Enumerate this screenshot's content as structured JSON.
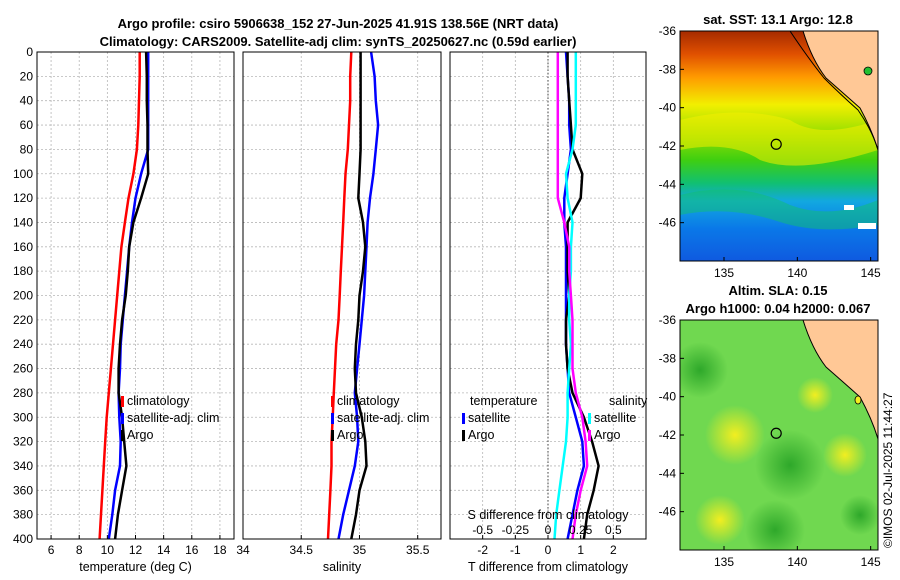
{
  "title": {
    "line1": "Argo profile: csiro 5906638_152 27-Jun-2025 41.91S 138.56E (NRT data)",
    "line2": "Climatology: CARS2009. Satellite-adj clim: synTS_20250627.nc (0.59d earlier)"
  },
  "credit": "©IMOS 02-Jul-2025 11:44:27",
  "colors": {
    "climatology": "#ff0000",
    "satellite": "#0000ff",
    "argo": "#000000",
    "t_sat": "#00ffff",
    "s_diff": "#ff00ff",
    "land": "#ffc896",
    "map_frame": "#000000"
  },
  "chart_data": [
    {
      "id": "temperature",
      "type": "line",
      "xlabel": "temperature (deg C)",
      "ylabel": "depth",
      "xlim": [
        5,
        19
      ],
      "ylim": [
        400,
        0
      ],
      "xticks": [
        "6",
        "8",
        "10",
        "12",
        "14",
        "16",
        "18"
      ],
      "xtick_values": [
        6,
        8,
        10,
        12,
        14,
        16,
        18
      ],
      "yticks": [
        "0",
        "20",
        "40",
        "60",
        "80",
        "100",
        "120",
        "140",
        "160",
        "180",
        "200",
        "220",
        "240",
        "260",
        "280",
        "300",
        "320",
        "340",
        "360",
        "380",
        "400"
      ],
      "ytick_values": [
        0,
        20,
        40,
        60,
        80,
        100,
        120,
        140,
        160,
        180,
        200,
        220,
        240,
        260,
        280,
        300,
        320,
        340,
        360,
        380,
        400
      ],
      "depth": [
        0,
        20,
        40,
        60,
        80,
        100,
        120,
        140,
        160,
        180,
        200,
        220,
        240,
        260,
        280,
        300,
        320,
        340,
        360,
        380,
        400
      ],
      "series": [
        {
          "name": "climatology",
          "color": "#ff0000",
          "values": [
            12.3,
            12.3,
            12.25,
            12.2,
            12.1,
            11.85,
            11.5,
            11.25,
            11.0,
            10.85,
            10.7,
            10.55,
            10.4,
            10.25,
            10.1,
            9.95,
            9.85,
            9.75,
            9.65,
            9.55,
            9.45
          ]
        },
        {
          "name": "satellite-adj. clim",
          "color": "#0000ff",
          "values": [
            12.9,
            12.9,
            12.9,
            12.9,
            12.9,
            12.4,
            12.0,
            11.75,
            11.55,
            11.4,
            11.25,
            11.1,
            10.95,
            10.9,
            10.8,
            10.85,
            10.95,
            10.9,
            10.55,
            10.35,
            10.1
          ]
        },
        {
          "name": "Argo",
          "color": "#000000",
          "values": [
            12.75,
            12.8,
            12.8,
            12.85,
            12.85,
            12.9,
            12.4,
            11.85,
            11.55,
            11.45,
            11.3,
            11.05,
            10.9,
            10.8,
            10.8,
            11.05,
            11.2,
            11.35,
            11.05,
            10.75,
            10.55
          ]
        }
      ],
      "legend": [
        "climatology",
        "satellite-adj. clim",
        "Argo"
      ]
    },
    {
      "id": "salinity",
      "type": "line",
      "xlabel": "salinity",
      "ylabel": "depth",
      "xlim": [
        34,
        35.7
      ],
      "ylim": [
        400,
        0
      ],
      "xticks": [
        "34",
        "34.5",
        "35",
        "35.5"
      ],
      "xtick_values": [
        34,
        34.5,
        35,
        35.5
      ],
      "depth": [
        0,
        20,
        40,
        60,
        80,
        100,
        120,
        140,
        160,
        180,
        200,
        220,
        240,
        260,
        280,
        300,
        320,
        340,
        360,
        380,
        400
      ],
      "series": [
        {
          "name": "climatology",
          "color": "#ff0000",
          "values": [
            34.93,
            34.92,
            34.92,
            34.91,
            34.9,
            34.88,
            34.87,
            34.86,
            34.85,
            34.84,
            34.83,
            34.82,
            34.8,
            34.79,
            34.78,
            34.77,
            34.76,
            34.76,
            34.75,
            34.74,
            34.73
          ]
        },
        {
          "name": "satellite-adj. clim",
          "color": "#0000ff",
          "values": [
            35.1,
            35.13,
            35.14,
            35.16,
            35.14,
            35.12,
            35.09,
            35.07,
            35.06,
            35.05,
            35.04,
            35.02,
            35.0,
            34.98,
            34.96,
            34.98,
            34.99,
            34.96,
            34.91,
            34.86,
            34.82
          ]
        },
        {
          "name": "Argo",
          "color": "#000000",
          "values": [
            35.01,
            35.01,
            35.01,
            35.01,
            35.01,
            35.0,
            34.99,
            35.03,
            35.05,
            35.03,
            35.0,
            34.99,
            34.97,
            34.96,
            34.97,
            35.02,
            35.05,
            35.06,
            35.0,
            34.97,
            34.93
          ]
        }
      ],
      "legend": [
        "climatology",
        "satellite-adj. clim",
        "Argo"
      ]
    },
    {
      "id": "difference",
      "type": "line",
      "xlabel": "T difference from climatology",
      "xlabel2": "S difference from climatology",
      "xlim": [
        -3,
        3
      ],
      "ylim": [
        400,
        0
      ],
      "xticks": [
        "-2",
        "-1",
        "0",
        "1",
        "2"
      ],
      "xtick_values": [
        -2,
        -1,
        0,
        1,
        2
      ],
      "xticks_s": [
        "-0.5",
        "-0.25",
        "0",
        "0.25",
        "0.5"
      ],
      "xtick_values_s": [
        -0.5,
        -0.25,
        0,
        0.25,
        0.5
      ],
      "depth": [
        0,
        20,
        40,
        60,
        80,
        100,
        120,
        140,
        160,
        180,
        200,
        220,
        240,
        260,
        280,
        300,
        320,
        340,
        360,
        380,
        400
      ],
      "series": [
        {
          "name": "T satellite",
          "color": "#0000ff",
          "values": [
            0.55,
            0.6,
            0.65,
            0.65,
            0.7,
            0.6,
            0.5,
            0.5,
            0.55,
            0.55,
            0.55,
            0.55,
            0.55,
            0.6,
            0.65,
            0.85,
            1.05,
            1.1,
            0.9,
            0.75,
            0.6
          ]
        },
        {
          "name": "T Argo",
          "color": "#000000",
          "values": [
            0.6,
            0.6,
            0.65,
            0.7,
            0.75,
            1.05,
            1.0,
            0.6,
            0.6,
            0.6,
            0.65,
            0.55,
            0.55,
            0.6,
            0.75,
            1.1,
            1.35,
            1.55,
            1.4,
            1.2,
            1.1
          ]
        },
        {
          "name": "S satellite",
          "color": "#00ffff",
          "values": [
            0.85,
            0.85,
            0.85,
            0.85,
            0.75,
            0.55,
            0.6,
            0.75,
            0.7,
            0.7,
            0.65,
            0.65,
            0.7,
            0.65,
            0.6,
            0.6,
            0.55,
            0.45,
            0.35,
            0.25,
            0.2
          ]
        },
        {
          "name": "S Argo",
          "color": "#ff00ff",
          "values": [
            0.3,
            0.3,
            0.3,
            0.3,
            0.3,
            0.3,
            0.3,
            0.5,
            0.65,
            0.65,
            0.7,
            0.75,
            0.75,
            0.75,
            0.85,
            1.05,
            1.15,
            1.2,
            1.0,
            0.85,
            0.75
          ]
        }
      ],
      "legend_t": {
        "title": "temperature",
        "items": [
          "satellite",
          "Argo"
        ]
      },
      "legend_s": {
        "title": "salinity",
        "items": [
          "satellite",
          "Argo"
        ]
      }
    },
    {
      "id": "sst_map",
      "type": "heatmap",
      "title": "sat. SST: 13.1 Argo: 12.8",
      "xticks": [
        "135",
        "140",
        "145"
      ],
      "xtick_values": [
        135,
        140,
        145
      ],
      "yticks": [
        "-36",
        "-38",
        "-40",
        "-42",
        "-44",
        "-46"
      ],
      "ytick_values": [
        -36,
        -38,
        -40,
        -42,
        -44,
        -46
      ],
      "xlim": [
        132,
        145.5
      ],
      "ylim": [
        -48,
        -36
      ],
      "float_position": [
        138.56,
        -41.91
      ]
    },
    {
      "id": "sla_map",
      "type": "heatmap",
      "title1": "Altim. SLA: 0.15",
      "title2": "Argo h1000: 0.04 h2000: 0.067",
      "xticks": [
        "135",
        "140",
        "145"
      ],
      "xtick_values": [
        135,
        140,
        145
      ],
      "yticks": [
        "-36",
        "-38",
        "-40",
        "-42",
        "-44",
        "-46"
      ],
      "ytick_values": [
        -36,
        -38,
        -40,
        -42,
        -44,
        -46
      ],
      "xlim": [
        132,
        145.5
      ],
      "ylim": [
        -48,
        -36
      ],
      "float_position": [
        138.56,
        -41.91
      ]
    }
  ]
}
